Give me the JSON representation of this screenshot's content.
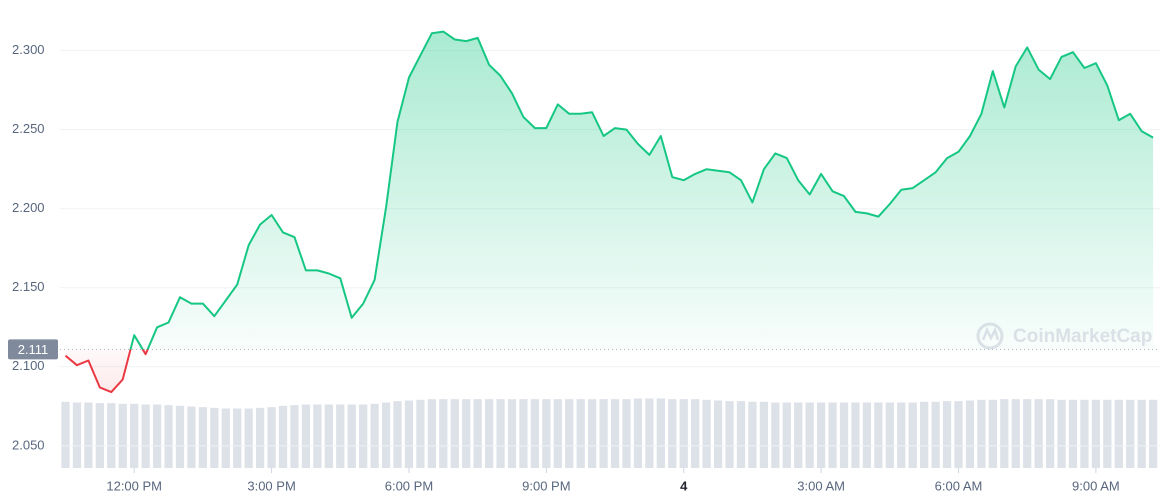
{
  "chart_data": {
    "type": "line",
    "watermark": "CoinMarketCap",
    "x": [
      10.5,
      10.75,
      11,
      11.25,
      11.5,
      11.75,
      12,
      12.25,
      12.5,
      12.75,
      13,
      13.25,
      13.5,
      13.75,
      14,
      14.25,
      14.5,
      14.75,
      15,
      15.25,
      15.5,
      15.75,
      16,
      16.25,
      16.5,
      16.75,
      17,
      17.25,
      17.5,
      17.75,
      18,
      18.25,
      18.5,
      18.75,
      19,
      19.25,
      19.5,
      19.75,
      20,
      20.25,
      20.5,
      20.75,
      21,
      21.25,
      21.5,
      21.75,
      22,
      22.25,
      22.5,
      22.75,
      23,
      23.25,
      23.5,
      23.75,
      24,
      24.25,
      24.5,
      24.75,
      25,
      25.25,
      25.5,
      25.75,
      26,
      26.25,
      26.5,
      26.75,
      27,
      27.25,
      27.5,
      27.75,
      28,
      28.25,
      28.5,
      28.75,
      29,
      29.25,
      29.5,
      29.75,
      30,
      30.25,
      30.5,
      30.75,
      31,
      31.25,
      31.5,
      31.75,
      32,
      32.25,
      32.5,
      32.75,
      33,
      33.25,
      33.5,
      33.75,
      34,
      34.25
    ],
    "series": [
      {
        "color": "#16c784",
        "color_below": "#ea3943",
        "values": [
          2.107,
          2.101,
          2.104,
          2.087,
          2.084,
          2.092,
          2.12,
          2.108,
          2.125,
          2.128,
          2.144,
          2.14,
          2.14,
          2.132,
          2.142,
          2.152,
          2.177,
          2.19,
          2.196,
          2.185,
          2.182,
          2.161,
          2.161,
          2.159,
          2.156,
          2.131,
          2.14,
          2.155,
          2.201,
          2.255,
          2.283,
          2.297,
          2.311,
          2.312,
          2.307,
          2.306,
          2.308,
          2.291,
          2.284,
          2.273,
          2.258,
          2.251,
          2.251,
          2.266,
          2.26,
          2.26,
          2.261,
          2.246,
          2.251,
          2.25,
          2.241,
          2.234,
          2.246,
          2.22,
          2.218,
          2.222,
          2.225,
          2.224,
          2.223,
          2.218,
          2.204,
          2.225,
          2.235,
          2.232,
          2.218,
          2.209,
          2.222,
          2.211,
          2.208,
          2.198,
          2.197,
          2.195,
          2.203,
          2.212,
          2.213,
          2.218,
          2.223,
          2.232,
          2.236,
          2.246,
          2.26,
          2.287,
          2.264,
          2.29,
          2.302,
          2.288,
          2.282,
          2.296,
          2.299,
          2.289,
          2.292,
          2.278,
          2.256,
          2.26,
          2.249,
          2.245
        ]
      },
      {
        "axis": "y2",
        "color": "#dde1e8",
        "values": [
          99,
          98,
          98,
          97,
          97,
          96,
          96,
          95,
          95,
          94,
          93,
          92,
          91,
          90,
          89,
          89,
          89,
          90,
          91,
          93,
          94,
          95,
          95,
          95,
          95,
          95,
          95,
          96,
          98,
          100,
          101,
          102,
          103,
          103,
          103,
          103,
          103,
          103,
          103,
          103,
          103,
          103,
          103,
          103,
          103,
          103,
          103,
          103,
          103,
          103,
          104,
          104,
          104,
          103,
          103,
          103,
          102,
          101,
          100,
          100,
          99,
          99,
          98,
          98,
          98,
          98,
          98,
          98,
          98,
          98,
          98,
          98,
          98,
          98,
          98,
          99,
          99,
          100,
          100,
          101,
          102,
          102,
          103,
          103,
          103,
          103,
          103,
          102,
          102,
          102,
          102,
          102,
          102,
          102,
          102,
          102
        ]
      }
    ],
    "baseline": 2.111,
    "xlim": [
      10.38,
      34.4
    ],
    "ylim": [
      2.036,
      2.332
    ],
    "y2lim": [
      0,
      700
    ],
    "xticks": [
      {
        "value": 12,
        "label": "12:00 PM"
      },
      {
        "value": 15,
        "label": "3:00 PM"
      },
      {
        "value": 18,
        "label": "6:00 PM"
      },
      {
        "value": 21,
        "label": "9:00 PM"
      },
      {
        "value": 24,
        "label": "4"
      },
      {
        "value": 27,
        "label": "3:00 AM"
      },
      {
        "value": 30,
        "label": "6:00 AM"
      },
      {
        "value": 33,
        "label": "9:00 AM"
      }
    ],
    "yticks": [
      {
        "value": 2.05,
        "label": "2.050"
      },
      {
        "value": 2.1,
        "label": "2.100"
      },
      {
        "value": 2.15,
        "label": "2.150"
      },
      {
        "value": 2.2,
        "label": "2.200"
      },
      {
        "value": 2.25,
        "label": "2.250"
      },
      {
        "value": 2.3,
        "label": "2.300"
      }
    ],
    "grid": true
  }
}
